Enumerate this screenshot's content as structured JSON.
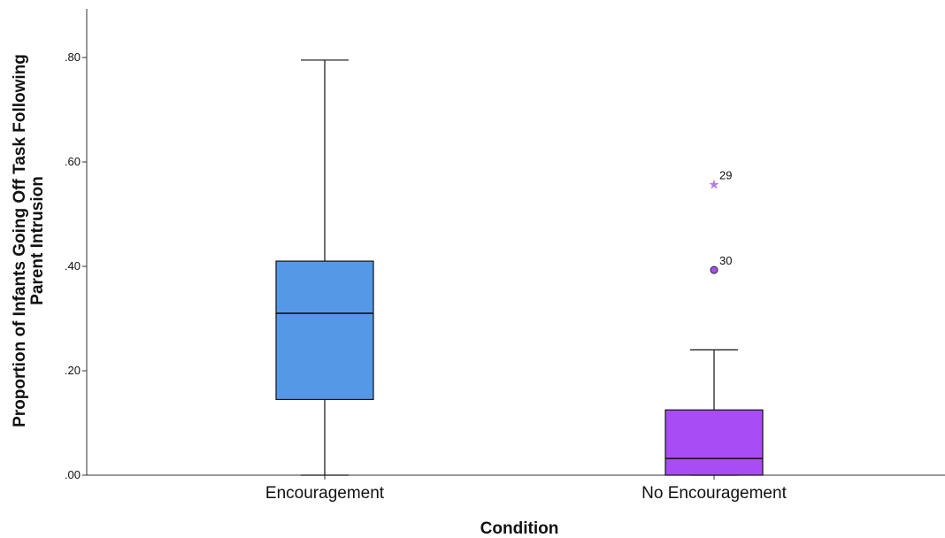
{
  "chart_data": {
    "type": "boxplot",
    "title": "",
    "xlabel": "Condition",
    "ylabel_lines": [
      "Proportion of Infants Going Off Task Following",
      "Parent Intrusion"
    ],
    "ylim": [
      0,
      0.89
    ],
    "yticks": [
      0,
      0.2,
      0.4,
      0.6,
      0.8
    ],
    "ytick_labels": [
      ".00",
      ".20",
      ".40",
      ".60",
      ".80"
    ],
    "grid": false,
    "categories": [
      "Encouragement",
      "No Encouragement"
    ],
    "boxes": [
      {
        "category": "Encouragement",
        "min": 0.0,
        "q1": 0.145,
        "median": 0.31,
        "q3": 0.41,
        "max": 0.795,
        "color": "#5599e6",
        "outliers": []
      },
      {
        "category": "No Encouragement",
        "min": 0.0,
        "q1": 0.0,
        "median": 0.032,
        "q3": 0.125,
        "max": 0.24,
        "color": "#a84df5",
        "outliers": [
          {
            "label": "29",
            "value": 0.557,
            "marker": "star",
            "color": "#b57be8"
          },
          {
            "label": "30",
            "value": 0.393,
            "marker": "circle",
            "color": "#a84df5"
          }
        ]
      }
    ]
  }
}
